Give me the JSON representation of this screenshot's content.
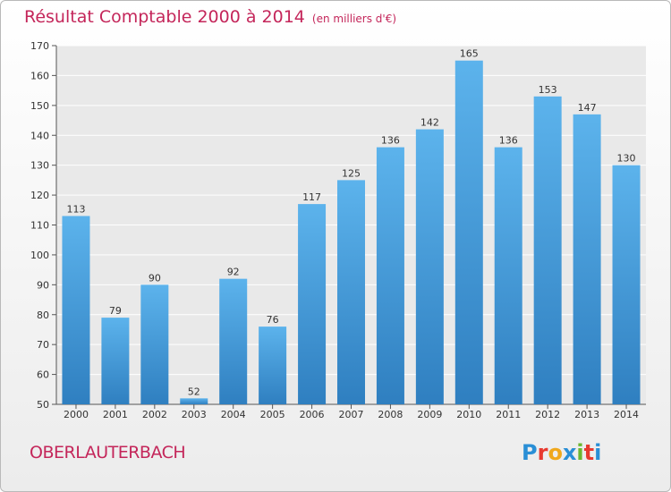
{
  "header": {
    "title": "Résultat Comptable 2000 à 2014",
    "unit": "(en milliers d'€)"
  },
  "footer": {
    "commune": "OBERLAUTERBACH",
    "logo": "Proxiti",
    "logo_colors": [
      "#2a8fd6",
      "#e83a2f",
      "#f0a81c",
      "#2a8fd6",
      "#6bb82f",
      "#e83a2f",
      "#2a8fd6"
    ]
  },
  "chart_data": {
    "type": "bar",
    "title": "Résultat Comptable 2000 à 2014",
    "subtitle": "(en milliers d'€)",
    "categories": [
      "2000",
      "2001",
      "2002",
      "2003",
      "2004",
      "2005",
      "2006",
      "2007",
      "2008",
      "2009",
      "2010",
      "2011",
      "2012",
      "2013",
      "2014"
    ],
    "values": [
      113,
      79,
      90,
      52,
      92,
      76,
      117,
      125,
      136,
      142,
      165,
      136,
      153,
      147,
      130
    ],
    "ylim": [
      50,
      170
    ],
    "yticks": [
      50,
      60,
      70,
      80,
      90,
      100,
      110,
      120,
      130,
      140,
      150,
      160,
      170
    ],
    "grid": true,
    "bar_color": "#4a9fe0",
    "label_color": "#333333"
  }
}
